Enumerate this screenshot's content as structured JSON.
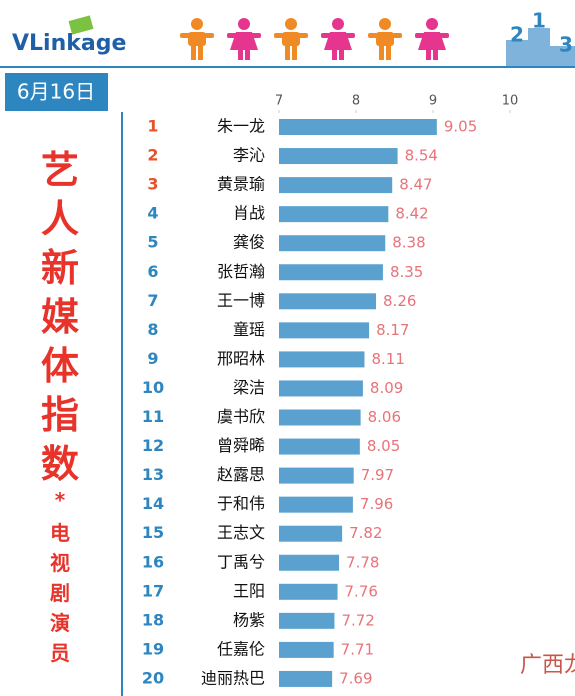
{
  "header": {
    "logo": "VLinkage",
    "date": "6月16日",
    "title": "艺人新媒体指数",
    "star": "*",
    "subtitle": "电视剧演员",
    "podium": [
      "2",
      "1",
      "3"
    ]
  },
  "watermark": "广西龙网",
  "chart_data": {
    "type": "barh",
    "ranks": [
      "1",
      "2",
      "3",
      "4",
      "5",
      "6",
      "7",
      "8",
      "9",
      "10",
      "11",
      "12",
      "13",
      "14",
      "15",
      "16",
      "17",
      "18",
      "19",
      "20"
    ],
    "categories": [
      "朱一龙",
      "李沁",
      "黄景瑜",
      "肖战",
      "龚俊",
      "张哲瀚",
      "王一博",
      "童瑶",
      "邢昭林",
      "梁洁",
      "虞书欣",
      "曾舜晞",
      "赵露思",
      "于和伟",
      "王志文",
      "丁禹兮",
      "王阳",
      "杨紫",
      "任嘉伦",
      "迪丽热巴"
    ],
    "values": [
      9.05,
      8.54,
      8.47,
      8.42,
      8.38,
      8.35,
      8.26,
      8.17,
      8.11,
      8.09,
      8.06,
      8.05,
      7.97,
      7.96,
      7.82,
      7.78,
      7.76,
      7.72,
      7.71,
      7.69
    ],
    "color": "#5ba1cf",
    "label_color": "#e8737a",
    "xlim": [
      7,
      10
    ],
    "xticks": [
      7,
      8,
      9,
      10
    ],
    "grid": false
  }
}
